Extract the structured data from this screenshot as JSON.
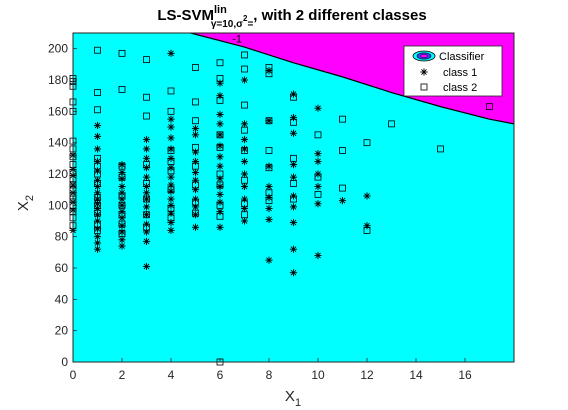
{
  "chart_data": {
    "type": "scatter",
    "title": {
      "main": "LS-SVM",
      "sup": "lin",
      "sub": "γ=10,σ",
      "sub_sup": "2",
      "tail_sub": "=",
      "rest": ", with 2 different classes"
    },
    "xlabel": "X",
    "xlabel_sub": "1",
    "ylabel": "X",
    "ylabel_sub": "2",
    "xlim": [
      0,
      18
    ],
    "ylim": [
      0,
      210
    ],
    "xticks": [
      0,
      2,
      4,
      6,
      8,
      10,
      12,
      14,
      16
    ],
    "yticks": [
      0,
      20,
      40,
      60,
      80,
      100,
      120,
      140,
      160,
      180,
      200
    ],
    "xtick_labels": [
      "0",
      "2",
      "4",
      "6",
      "8",
      "10",
      "12",
      "14",
      "16"
    ],
    "ytick_labels": [
      "0",
      "20",
      "40",
      "60",
      "80",
      "100",
      "120",
      "140",
      "160",
      "180",
      "200"
    ],
    "background": {
      "class_2_region_color": "#00ffff",
      "class_1_region_color": "#ff00ff",
      "boundary": [
        [
          4.8,
          210
        ],
        [
          7,
          201
        ],
        [
          9,
          191
        ],
        [
          11,
          182
        ],
        [
          13,
          172
        ],
        [
          15,
          163
        ],
        [
          17,
          155
        ],
        [
          18,
          152
        ]
      ],
      "contour_label": "-1",
      "contour_label_at": [
        6.5,
        204
      ]
    },
    "legend": {
      "position": "top-right",
      "entries": [
        "Classifier",
        "class 1",
        "class 2"
      ]
    },
    "series": [
      {
        "name": "class 1",
        "marker": "asterisk",
        "color": "#000000",
        "points": [
          [
            0,
            84
          ],
          [
            0,
            97
          ],
          [
            0,
            102
          ],
          [
            0,
            108
          ],
          [
            0,
            113
          ],
          [
            0,
            119
          ],
          [
            0,
            123
          ],
          [
            0,
            132
          ],
          [
            1,
            72
          ],
          [
            1,
            76
          ],
          [
            1,
            80
          ],
          [
            1,
            85
          ],
          [
            1,
            90
          ],
          [
            1,
            94
          ],
          [
            1,
            98
          ],
          [
            1,
            101
          ],
          [
            1,
            104
          ],
          [
            1,
            108
          ],
          [
            1,
            112
          ],
          [
            1,
            116
          ],
          [
            1,
            122
          ],
          [
            1,
            128
          ],
          [
            1,
            136
          ],
          [
            1,
            144
          ],
          [
            1,
            151
          ],
          [
            2,
            74
          ],
          [
            2,
            78
          ],
          [
            2,
            83
          ],
          [
            2,
            87
          ],
          [
            2,
            92
          ],
          [
            2,
            96
          ],
          [
            2,
            100
          ],
          [
            2,
            104
          ],
          [
            2,
            108
          ],
          [
            2,
            112
          ],
          [
            2,
            117
          ],
          [
            2,
            121
          ],
          [
            2,
            126
          ],
          [
            3,
            61
          ],
          [
            3,
            77
          ],
          [
            3,
            83
          ],
          [
            3,
            88
          ],
          [
            3,
            94
          ],
          [
            3,
            99
          ],
          [
            3,
            104
          ],
          [
            3,
            108
          ],
          [
            3,
            112
          ],
          [
            3,
            118
          ],
          [
            3,
            124
          ],
          [
            3,
            130
          ],
          [
            3,
            136
          ],
          [
            3,
            142
          ],
          [
            4,
            84
          ],
          [
            4,
            89
          ],
          [
            4,
            95
          ],
          [
            4,
            100
          ],
          [
            4,
            104
          ],
          [
            4,
            109
          ],
          [
            4,
            113
          ],
          [
            4,
            118
          ],
          [
            4,
            124
          ],
          [
            4,
            130
          ],
          [
            4,
            136
          ],
          [
            4,
            143
          ],
          [
            4,
            150
          ],
          [
            4,
            155
          ],
          [
            4,
            197
          ],
          [
            5,
            86
          ],
          [
            5,
            94
          ],
          [
            5,
            99
          ],
          [
            5,
            104
          ],
          [
            5,
            110
          ],
          [
            5,
            116
          ],
          [
            5,
            121
          ],
          [
            5,
            128
          ],
          [
            5,
            134
          ],
          [
            5,
            145
          ],
          [
            5,
            149
          ],
          [
            6,
            86
          ],
          [
            6,
            96
          ],
          [
            6,
            102
          ],
          [
            6,
            107
          ],
          [
            6,
            112
          ],
          [
            6,
            117
          ],
          [
            6,
            125
          ],
          [
            6,
            131
          ],
          [
            6,
            138
          ],
          [
            6,
            145
          ],
          [
            6,
            152
          ],
          [
            6,
            158
          ],
          [
            6,
            170
          ],
          [
            6,
            178
          ],
          [
            7,
            90
          ],
          [
            7,
            98
          ],
          [
            7,
            104
          ],
          [
            7,
            112
          ],
          [
            7,
            120
          ],
          [
            7,
            128
          ],
          [
            7,
            136
          ],
          [
            7,
            142
          ],
          [
            7,
            152
          ],
          [
            7,
            180
          ],
          [
            8,
            65
          ],
          [
            8,
            91
          ],
          [
            8,
            98
          ],
          [
            8,
            105
          ],
          [
            8,
            112
          ],
          [
            8,
            125
          ],
          [
            8,
            154
          ],
          [
            8,
            186
          ],
          [
            9,
            57
          ],
          [
            9,
            72
          ],
          [
            9,
            89
          ],
          [
            9,
            99
          ],
          [
            9,
            106
          ],
          [
            9,
            118
          ],
          [
            9,
            126
          ],
          [
            9,
            146
          ],
          [
            9,
            156
          ],
          [
            9,
            171
          ],
          [
            10,
            68
          ],
          [
            10,
            101
          ],
          [
            10,
            112
          ],
          [
            10,
            120
          ],
          [
            10,
            128
          ],
          [
            10,
            133
          ],
          [
            10,
            162
          ],
          [
            11,
            103
          ],
          [
            12,
            87
          ],
          [
            12,
            106
          ]
        ]
      },
      {
        "name": "class 2",
        "marker": "square",
        "color": "#000000",
        "points": [
          [
            0,
            160
          ],
          [
            0,
            166
          ],
          [
            0,
            176
          ],
          [
            0,
            179
          ],
          [
            0,
            181
          ],
          [
            0,
            87
          ],
          [
            0,
            92
          ],
          [
            0,
            96
          ],
          [
            0,
            100
          ],
          [
            0,
            104
          ],
          [
            0,
            106
          ],
          [
            0,
            110
          ],
          [
            0,
            113
          ],
          [
            0,
            117
          ],
          [
            0,
            121
          ],
          [
            0,
            126
          ],
          [
            0,
            131
          ],
          [
            0,
            136
          ],
          [
            0,
            141
          ],
          [
            1,
            199
          ],
          [
            1,
            172
          ],
          [
            1,
            161
          ],
          [
            1,
            130
          ],
          [
            1,
            125
          ],
          [
            1,
            120
          ],
          [
            1,
            114
          ],
          [
            1,
            105
          ],
          [
            1,
            100
          ],
          [
            1,
            95
          ],
          [
            1,
            88
          ],
          [
            1,
            84
          ],
          [
            2,
            197
          ],
          [
            2,
            174
          ],
          [
            2,
            125
          ],
          [
            2,
            118
          ],
          [
            2,
            106
          ],
          [
            2,
            100
          ],
          [
            2,
            94
          ],
          [
            2,
            88
          ],
          [
            2,
            82
          ],
          [
            3,
            193
          ],
          [
            3,
            169
          ],
          [
            3,
            157
          ],
          [
            3,
            126
          ],
          [
            3,
            114
          ],
          [
            3,
            104
          ],
          [
            3,
            94
          ],
          [
            3,
            86
          ],
          [
            4,
            173
          ],
          [
            4,
            160
          ],
          [
            4,
            135
          ],
          [
            4,
            128
          ],
          [
            4,
            122
          ],
          [
            4,
            110
          ],
          [
            4,
            98
          ],
          [
            4,
            92
          ],
          [
            5,
            188
          ],
          [
            5,
            166
          ],
          [
            5,
            154
          ],
          [
            5,
            137
          ],
          [
            5,
            125
          ],
          [
            5,
            113
          ],
          [
            5,
            102
          ],
          [
            5,
            95
          ],
          [
            6,
            191
          ],
          [
            6,
            181
          ],
          [
            6,
            167
          ],
          [
            6,
            145
          ],
          [
            6,
            137
          ],
          [
            6,
            120
          ],
          [
            6,
            113
          ],
          [
            6,
            100
          ],
          [
            6,
            93
          ],
          [
            6,
            0
          ],
          [
            7,
            196
          ],
          [
            7,
            187
          ],
          [
            7,
            164
          ],
          [
            7,
            148
          ],
          [
            7,
            135
          ],
          [
            7,
            116
          ],
          [
            7,
            101
          ],
          [
            7,
            94
          ],
          [
            8,
            188
          ],
          [
            8,
            184
          ],
          [
            8,
            154
          ],
          [
            8,
            135
          ],
          [
            8,
            124
          ],
          [
            8,
            108
          ],
          [
            8,
            103
          ],
          [
            9,
            169
          ],
          [
            9,
            153
          ],
          [
            9,
            130
          ],
          [
            9,
            114
          ],
          [
            9,
            104
          ],
          [
            10,
            145
          ],
          [
            10,
            118
          ],
          [
            10,
            107
          ],
          [
            11,
            155
          ],
          [
            11,
            135
          ],
          [
            11,
            111
          ],
          [
            12,
            140
          ],
          [
            12,
            84
          ],
          [
            13,
            152
          ],
          [
            15,
            136
          ],
          [
            17,
            163
          ]
        ]
      }
    ]
  }
}
